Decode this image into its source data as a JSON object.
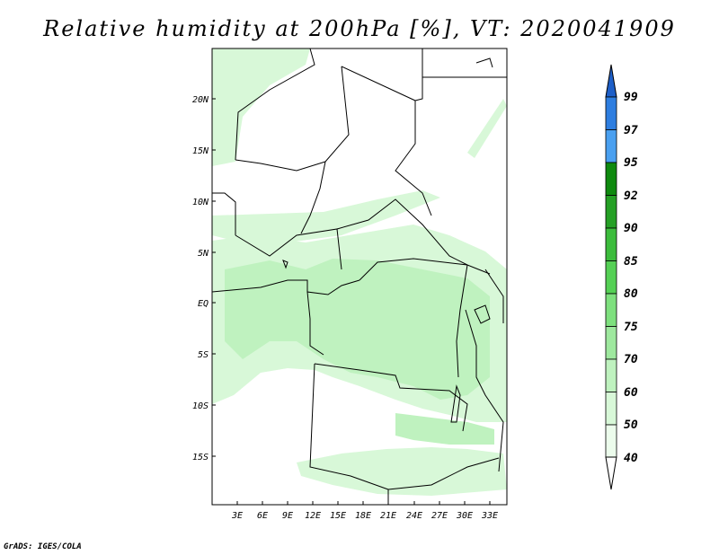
{
  "title": "Relative humidity at 200hPa [%], VT: 2020041909",
  "footer": "GrADS: IGES/COLA",
  "axes": {
    "lat_labels": [
      "20N",
      "15N",
      "10N",
      "5N",
      "EQ",
      "5S",
      "10S",
      "15S"
    ],
    "lon_labels": [
      "3E",
      "6E",
      "9E",
      "12E",
      "15E",
      "18E",
      "21E",
      "24E",
      "27E",
      "30E",
      "33E"
    ]
  },
  "colorbar": {
    "levels": [
      "99",
      "97",
      "95",
      "92",
      "90",
      "85",
      "80",
      "75",
      "70",
      "60",
      "50",
      "40"
    ],
    "colors": [
      "#1e5fc8",
      "#2e7ee0",
      "#4aa0f0",
      "#0f8a0f",
      "#25a025",
      "#3cbc3c",
      "#55d055",
      "#7ee07e",
      "#9ee89e",
      "#bff2bf",
      "#d8f8d8",
      "#ecfcec",
      "#ffffff"
    ]
  }
}
